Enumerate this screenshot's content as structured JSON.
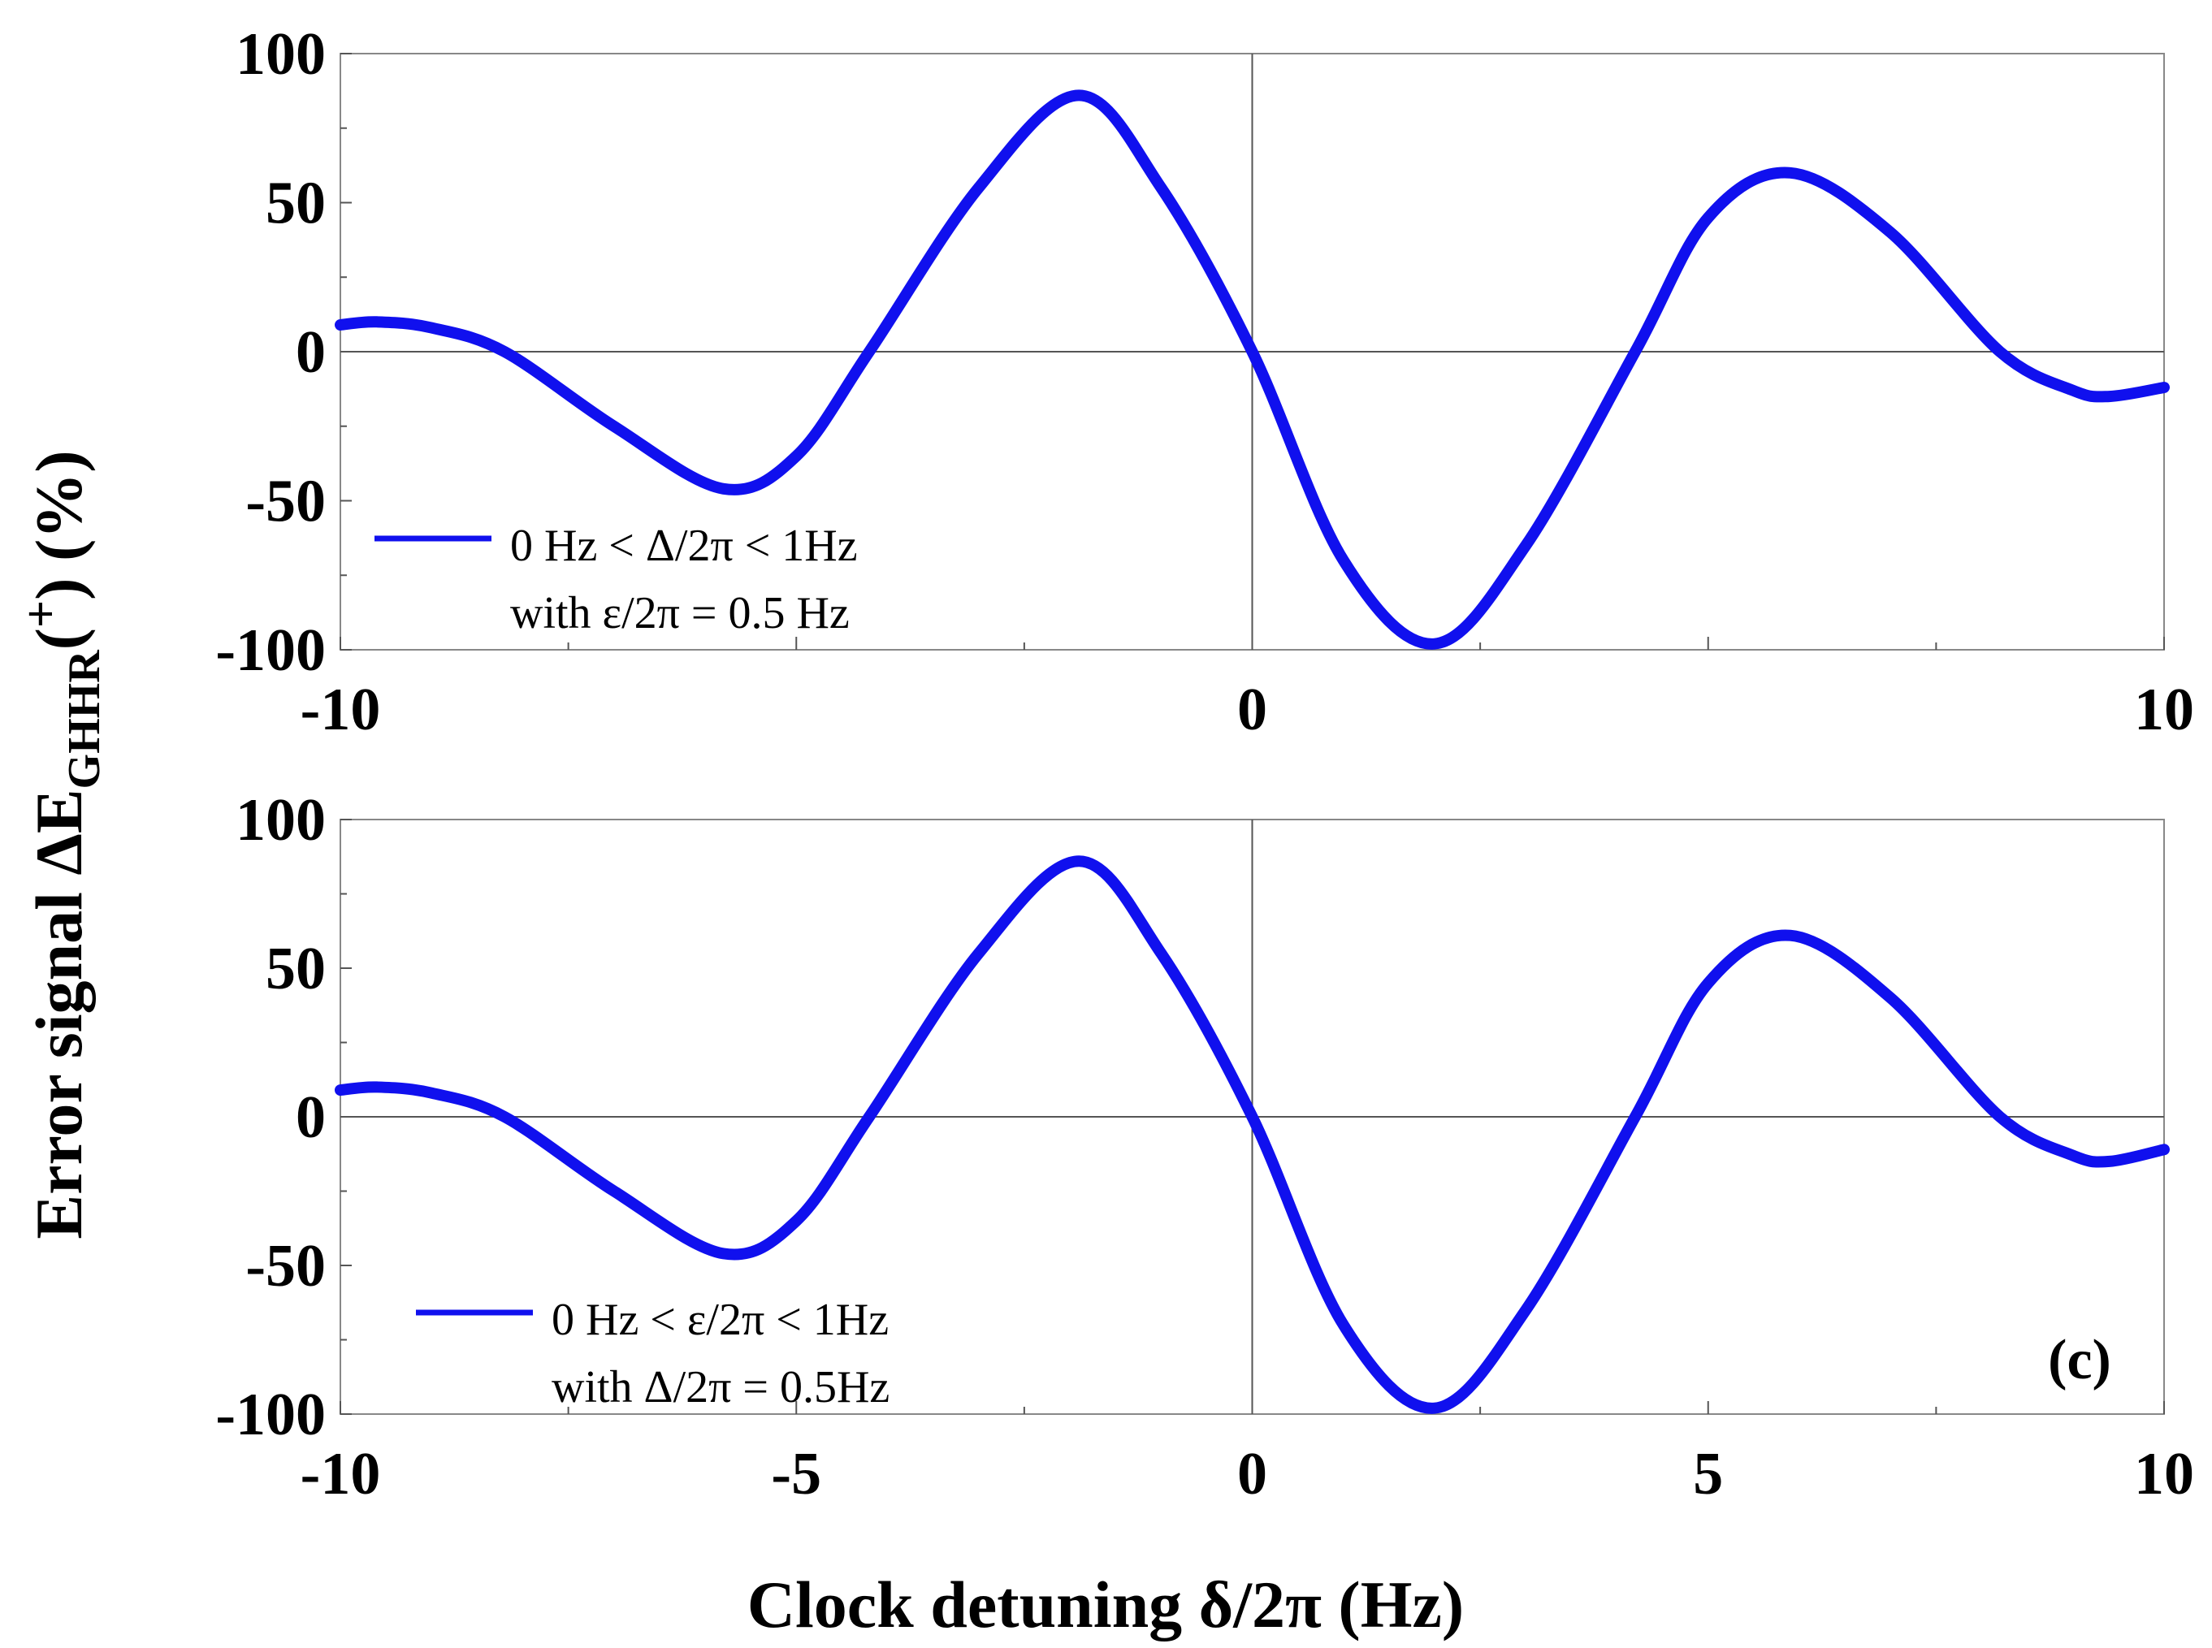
{
  "chart_data": [
    {
      "type": "line",
      "panel_label": "",
      "xlim": [
        -10,
        10
      ],
      "ylim": [
        -100,
        100
      ],
      "x_ticks": [
        "-10",
        "0",
        "10"
      ],
      "y_ticks": [
        "100",
        "50",
        "0",
        "-50",
        "-100"
      ],
      "legend": {
        "line1": "0 Hz < Δ/2π < 1Hz",
        "line2": "with ε/2π = 0.5 Hz"
      },
      "color": "#1010ee",
      "series": [
        {
          "x": [
            -10,
            -9.6,
            -9,
            -8.2,
            -7,
            -5.8,
            -5,
            -4.2,
            -3,
            -1.9,
            -1,
            0,
            1,
            2,
            3,
            4.2,
            5,
            5.9,
            7,
            8.2,
            9,
            9.4,
            10
          ],
          "y": [
            9,
            10,
            8,
            0,
            -25,
            -46,
            -35,
            0,
            55,
            86,
            55,
            0,
            -70,
            -98,
            -65,
            0,
            45,
            60,
            40,
            0,
            -13,
            -15,
            -12
          ]
        }
      ]
    },
    {
      "type": "line",
      "panel_label": "(c)",
      "xlim": [
        -10,
        10
      ],
      "ylim": [
        -100,
        100
      ],
      "x_ticks": [
        "-10",
        "-5",
        "0",
        "5",
        "10"
      ],
      "y_ticks": [
        "100",
        "50",
        "0",
        "-50",
        "-100"
      ],
      "legend": {
        "line1": "0 Hz < ε/2π < 1Hz",
        "line2": "with Δ/2π = 0.5Hz"
      },
      "color": "#1010ee",
      "series": [
        {
          "x": [
            -10,
            -9.6,
            -9,
            -8.2,
            -7,
            -5.8,
            -5,
            -4.2,
            -3,
            -1.9,
            -1,
            0,
            1,
            2,
            3,
            4.2,
            5,
            5.9,
            7,
            8.2,
            9,
            9.4,
            10
          ],
          "y": [
            9,
            10,
            8,
            0,
            -25,
            -46,
            -35,
            0,
            55,
            86,
            55,
            0,
            -70,
            -98,
            -65,
            0,
            45,
            61,
            40,
            0,
            -13,
            -15,
            -11
          ]
        }
      ]
    }
  ],
  "xlabel": "Clock detuning δ/2π (Hz)",
  "ylabel": {
    "main": "Error signal ΔE",
    "subscript": "GHHR",
    "superscript": "+",
    "suffix": " (%)"
  }
}
